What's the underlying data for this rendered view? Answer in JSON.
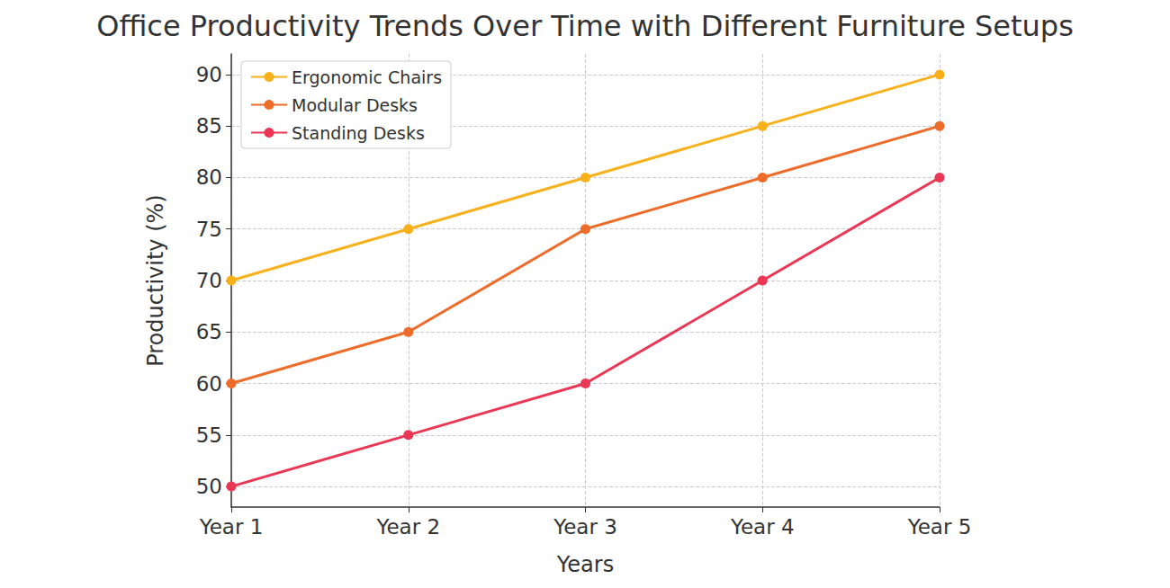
{
  "chart_data": {
    "type": "line",
    "title": "Office Productivity Trends Over Time with Different Furniture Setups",
    "x_label": "Years",
    "y_label": "Productivity (%)",
    "categories": [
      "Year 1",
      "Year 2",
      "Year 3",
      "Year 4",
      "Year 5"
    ],
    "series": [
      {
        "name": "Ergonomic Chairs",
        "color": "#f9b11b",
        "values": [
          70,
          75,
          80,
          85,
          90
        ]
      },
      {
        "name": "Modular Desks",
        "color": "#ef6b2a",
        "values": [
          60,
          65,
          75,
          80,
          85
        ]
      },
      {
        "name": "Standing Desks",
        "color": "#eb3756",
        "values": [
          50,
          55,
          60,
          70,
          80
        ]
      }
    ],
    "ylim": [
      48,
      92
    ],
    "yticks": [
      50,
      55,
      60,
      65,
      70,
      75,
      80,
      85,
      90
    ],
    "grid": true,
    "legend": "upper left",
    "marker": "circle",
    "line_style": "solid"
  }
}
